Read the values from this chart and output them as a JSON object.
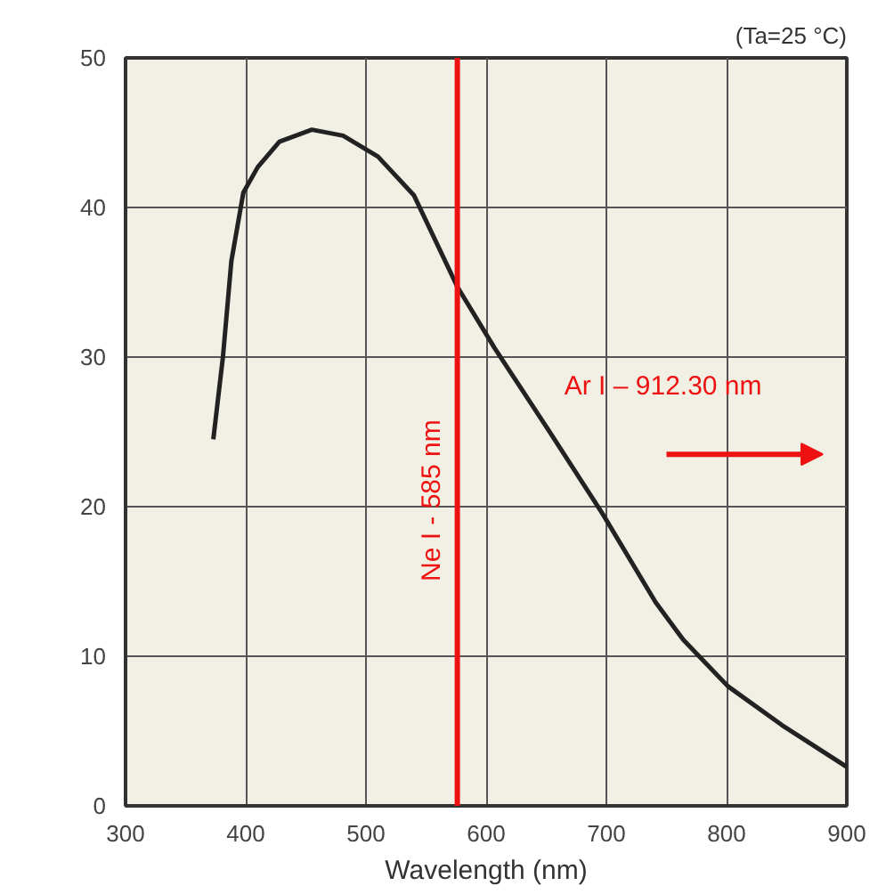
{
  "chart_data": {
    "type": "line",
    "xlabel": "Wavelength (nm)",
    "annotations": [
      "(Ta=25 °C)",
      "Ar I – 912.30 nm"
    ],
    "x": [
      373,
      381,
      388,
      398,
      410,
      428,
      455,
      481,
      510,
      540,
      576,
      607,
      652,
      697,
      741,
      764,
      801,
      846,
      900
    ],
    "series": [
      {
        "color": "#222222",
        "values": [
          24.5,
          30,
          36.4,
          41,
          42.7,
          44.4,
          45.2,
          44.8,
          43.4,
          40.8,
          34.7,
          30.6,
          25.1,
          19.5,
          13.6,
          11.1,
          8.0,
          5.4,
          2.6
        ]
      }
    ],
    "xlim": [
      300,
      900
    ],
    "ylim": [
      0,
      50
    ],
    "xticks": [
      300,
      400,
      500,
      600,
      700,
      800,
      900
    ],
    "yticks": [
      0,
      10,
      20,
      30,
      40,
      50
    ],
    "grid": true,
    "marker": "none",
    "line_style": "solid",
    "ref_lines": [
      {
        "axis": "x",
        "value": 576,
        "label": "Ne I - 585 nm",
        "color": "#ee1111"
      }
    ]
  }
}
